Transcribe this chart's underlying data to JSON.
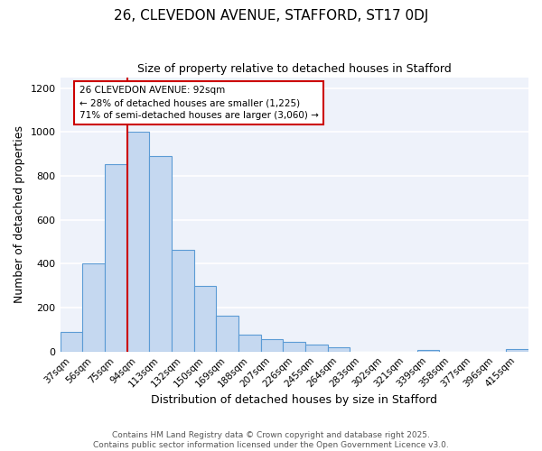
{
  "title1": "26, CLEVEDON AVENUE, STAFFORD, ST17 0DJ",
  "title2": "Size of property relative to detached houses in Stafford",
  "xlabel": "Distribution of detached houses by size in Stafford",
  "ylabel": "Number of detached properties",
  "categories": [
    "37sqm",
    "56sqm",
    "75sqm",
    "94sqm",
    "113sqm",
    "132sqm",
    "150sqm",
    "169sqm",
    "188sqm",
    "207sqm",
    "226sqm",
    "245sqm",
    "264sqm",
    "283sqm",
    "302sqm",
    "321sqm",
    "339sqm",
    "358sqm",
    "377sqm",
    "396sqm",
    "415sqm"
  ],
  "values": [
    90,
    400,
    855,
    1000,
    890,
    465,
    300,
    165,
    75,
    55,
    45,
    30,
    20,
    0,
    0,
    0,
    8,
    0,
    0,
    0,
    10
  ],
  "bar_color": "#c5d8f0",
  "bar_edge_color": "#5b9bd5",
  "vline_color": "#cc0000",
  "annotation_line1": "26 CLEVEDON AVENUE: 92sqm",
  "annotation_line2": "← 28% of detached houses are smaller (1,225)",
  "annotation_line3": "71% of semi-detached houses are larger (3,060) →",
  "annotation_box_color": "#ffffff",
  "annotation_box_edge": "#cc0000",
  "bg_color": "#eef2fa",
  "grid_color": "#ffffff",
  "footer1": "Contains HM Land Registry data © Crown copyright and database right 2025.",
  "footer2": "Contains public sector information licensed under the Open Government Licence v3.0.",
  "ylim": [
    0,
    1250
  ],
  "yticks": [
    0,
    200,
    400,
    600,
    800,
    1000,
    1200
  ]
}
